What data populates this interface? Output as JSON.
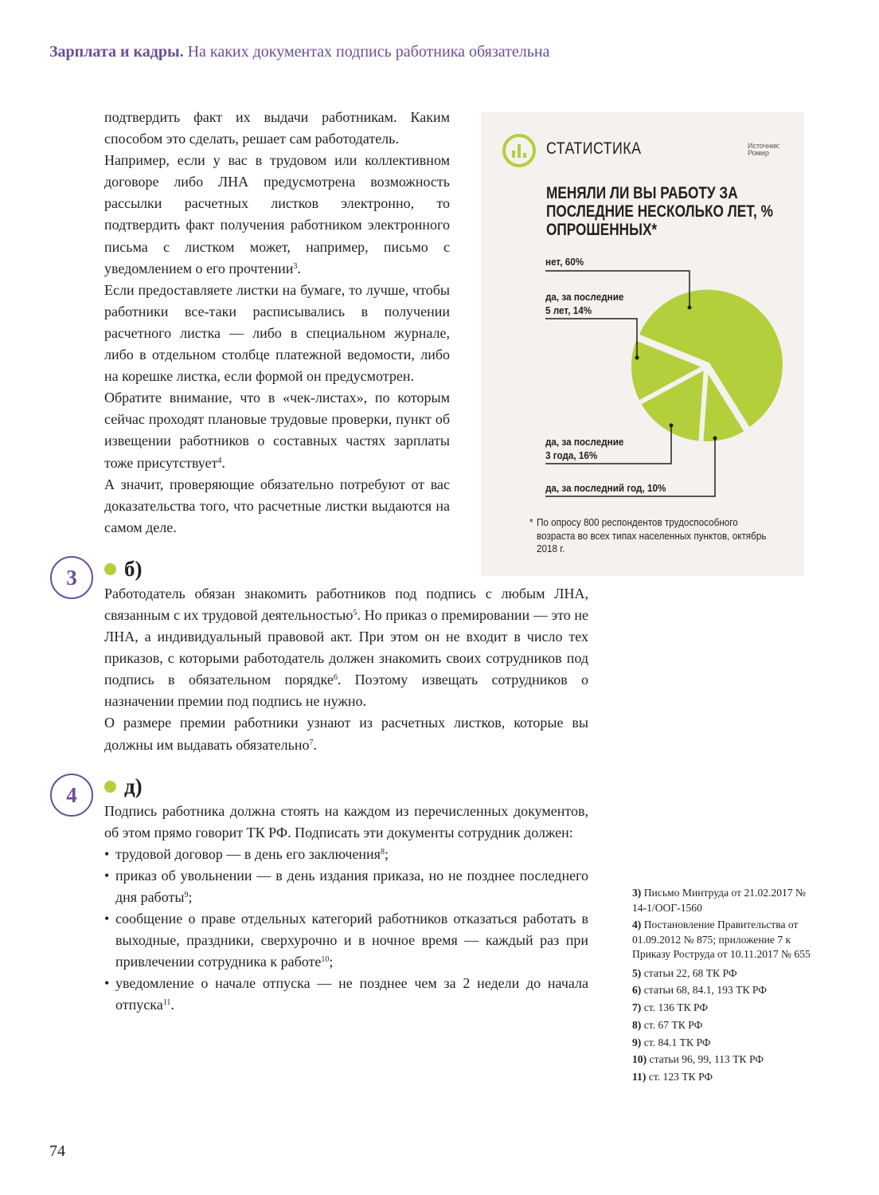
{
  "header": {
    "section": "Зарплата и кадры.",
    "title": "На каких документах подпись работника обязательна"
  },
  "intro_paragraphs": [
    [
      {
        "t": "подтвердить факт их выдачи работникам. Каким способом это сделать, решает сам работодатель."
      }
    ],
    [
      {
        "t": "Например, если у вас в трудовом или коллективном договоре либо ЛНА предусмотрена возможность рассылки расчетных листков электронно, то подтвердить факт получения работником электронного письма с листком может, например, письмо с уведомлением о его прочтении"
      },
      {
        "sup": "3"
      },
      {
        "t": "."
      }
    ],
    [
      {
        "t": "Если предоставляете листки на бумаге, то лучше, чтобы работники все-таки расписывались в получении расчетного листка — либо в специальном журнале, либо в отдельном столбце платежной ведомости, либо на корешке листка, если формой он предусмотрен."
      }
    ],
    [
      {
        "t": "Обратите внимание, что в «чек-листах», по которым сейчас проходят плановые трудовые проверки, пункт об извещении работников о составных частях зарплаты тоже присутствует"
      },
      {
        "sup": "4"
      },
      {
        "t": "."
      }
    ],
    [
      {
        "t": "А значит, проверяющие обязательно потребуют от вас доказательства того, что расчетные листки выдаются на самом деле."
      }
    ]
  ],
  "answers": [
    {
      "number": "3",
      "letter": "б)",
      "paragraphs": [
        [
          {
            "t": "Работодатель обязан знакомить работников под подпись с любым ЛНА, связанным с их трудовой деятельностью"
          },
          {
            "sup": "5"
          },
          {
            "t": ". Но приказ о премировании — это не ЛНА, а индивидуальный правовой акт. При этом он не входит в число тех приказов, с которыми работодатель должен знакомить своих сотрудников под подпись в обязательном порядке"
          },
          {
            "sup": "6"
          },
          {
            "t": ". Поэтому извещать сотрудников о назначении премии под подпись не нужно."
          }
        ],
        [
          {
            "t": "О размере премии работники узнают из расчетных листков, которые вы должны им выдавать обязательно"
          },
          {
            "sup": "7"
          },
          {
            "t": "."
          }
        ]
      ]
    },
    {
      "number": "4",
      "letter": "д)",
      "paragraphs": [
        [
          {
            "t": "Подпись работника должна стоять на каждом из перечисленных документов, об этом прямо говорит ТК РФ. Подписать эти документы сотрудник должен:"
          }
        ]
      ],
      "bullets": [
        [
          {
            "t": "трудовой договор — в день его заключения"
          },
          {
            "sup": "8"
          },
          {
            "t": ";"
          }
        ],
        [
          {
            "t": "приказ об увольнении — в день издания приказа, но не позднее последнего дня работы"
          },
          {
            "sup": "9"
          },
          {
            "t": ";"
          }
        ],
        [
          {
            "t": "сообщение о праве отдельных категорий работников отказаться работать в выходные, праздники, сверхурочно и в ночное время — каждый раз при привлечении сотрудника к работе"
          },
          {
            "sup": "10"
          },
          {
            "t": ";"
          }
        ],
        [
          {
            "t": "уведомление о начале отпуска — не позднее чем за 2 недели до начала отпуска"
          },
          {
            "sup": "11"
          },
          {
            "t": "."
          }
        ]
      ]
    }
  ],
  "stats": {
    "heading": "СТАТИСТИКА",
    "icon": "bar-chart-icon",
    "source": "Источник:",
    "source_name": "Ромир",
    "question": "МЕНЯЛИ ЛИ ВЫ РАБОТУ ЗА ПОСЛЕДНИЕ НЕСКОЛЬКО ЛЕТ, % ОПРОШЕННЫХ*",
    "note_mark": "*",
    "note": "По опросу 800 респондентов трудоспособного возраста во всех типах населенных пунктов, октябрь 2018 г."
  },
  "chart_data": {
    "type": "pie",
    "title": "МЕНЯЛИ ЛИ ВЫ РАБОТУ ЗА ПОСЛЕДНИЕ НЕСКОЛЬКО ЛЕТ, % ОПРОШЕННЫХ*",
    "slices": [
      {
        "label": "нет, 60%",
        "value": 60
      },
      {
        "label": "да, за последний год, 10%",
        "value": 10
      },
      {
        "label": "да, за последние 3 года, 16%",
        "value": 16
      },
      {
        "label": "да, за последние 5 лет, 14%",
        "value": 14
      }
    ],
    "color": "#b3cf3b"
  },
  "footnotes": [
    {
      "n": "3)",
      "t": "Письмо Минтруда от 21.02.2017 № 14-1/ООГ-1560"
    },
    {
      "n": "4)",
      "t": "Постановление Правительства от 01.09.2012 № 875; приложение 7 к Приказу Роструда от 10.11.2017 № 655"
    },
    {
      "n": "5)",
      "t": "статьи 22, 68 ТК РФ"
    },
    {
      "n": "6)",
      "t": "статьи 68, 84.1, 193 ТК РФ"
    },
    {
      "n": "7)",
      "t": "ст. 136 ТК РФ"
    },
    {
      "n": "8)",
      "t": "ст. 67 ТК РФ"
    },
    {
      "n": "9)",
      "t": "ст. 84.1 ТК РФ"
    },
    {
      "n": "10)",
      "t": "статьи 96, 99, 113 ТК РФ"
    },
    {
      "n": "11)",
      "t": "ст. 123 ТК РФ"
    }
  ],
  "page_number": "74",
  "colors": {
    "accent": "#6b4e98",
    "green": "#b3cf3b",
    "box": "#f4f1ee"
  }
}
